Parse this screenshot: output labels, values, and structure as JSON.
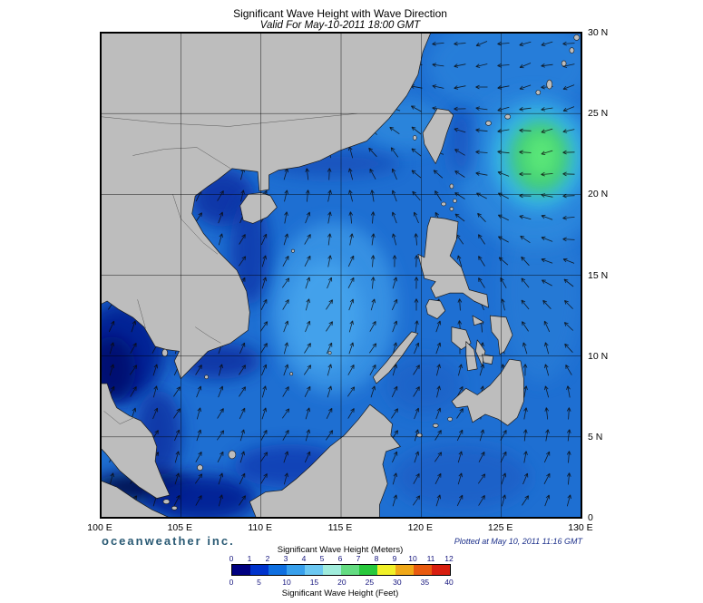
{
  "title": "Significant Wave Height with Wave Direction",
  "subtitle": "Valid For May-10-2011 18:00 GMT",
  "branding": "oceanweather inc.",
  "plotted_at": "Plotted at May 10, 2011 11:16 GMT",
  "axes": {
    "lat_labels": [
      "30 N",
      "25 N",
      "20 N",
      "15 N",
      "10 N",
      "5 N",
      "0"
    ],
    "lon_labels": [
      "100 E",
      "105 E",
      "110 E",
      "115 E",
      "120 E",
      "125 E",
      "130 E"
    ]
  },
  "legend": {
    "meters_label": "Significant Wave Height (Meters)",
    "feet_label": "Significant Wave Height (Feet)",
    "meters_ticks": [
      "0",
      "1",
      "2",
      "3",
      "4",
      "5",
      "6",
      "7",
      "8",
      "9",
      "10",
      "11",
      "12"
    ],
    "feet_ticks": [
      "0",
      "5",
      "10",
      "15",
      "20",
      "25",
      "30",
      "35",
      "40"
    ],
    "colors": [
      "#000080",
      "#0033cc",
      "#0f6fe0",
      "#38a0ec",
      "#6cc8f2",
      "#a0ecdc",
      "#64dc82",
      "#28c83c",
      "#f0f028",
      "#f0a818",
      "#e85a10",
      "#d81e10"
    ]
  },
  "map_colors": {
    "sea_base": "#1e6fd2",
    "land": "#bdbdbd",
    "coastline": "#1b1b1b",
    "high_wave_green": "#52e070",
    "brand_color": "#2a5a74"
  }
}
